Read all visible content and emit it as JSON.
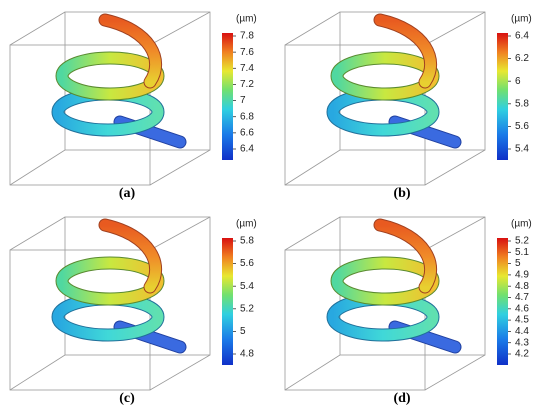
{
  "panels": [
    {
      "label": "(a)",
      "unit": "(µm)",
      "ticks": [
        7.8,
        7.6,
        7.4,
        7.2,
        7,
        6.8,
        6.6,
        6.4
      ]
    },
    {
      "label": "(b)",
      "unit": "(µm)",
      "ticks": [
        6.4,
        6.2,
        6,
        5.8,
        5.6,
        5.4
      ]
    },
    {
      "label": "(c)",
      "unit": "(µm)",
      "ticks": [
        5.8,
        5.6,
        5.4,
        5.2,
        5,
        4.8
      ]
    },
    {
      "label": "(d)",
      "unit": "(µm)",
      "ticks": [
        5.2,
        5.1,
        5,
        4.9,
        4.8,
        4.7,
        4.6,
        4.5,
        4.4,
        4.3,
        4.2
      ]
    }
  ]
}
